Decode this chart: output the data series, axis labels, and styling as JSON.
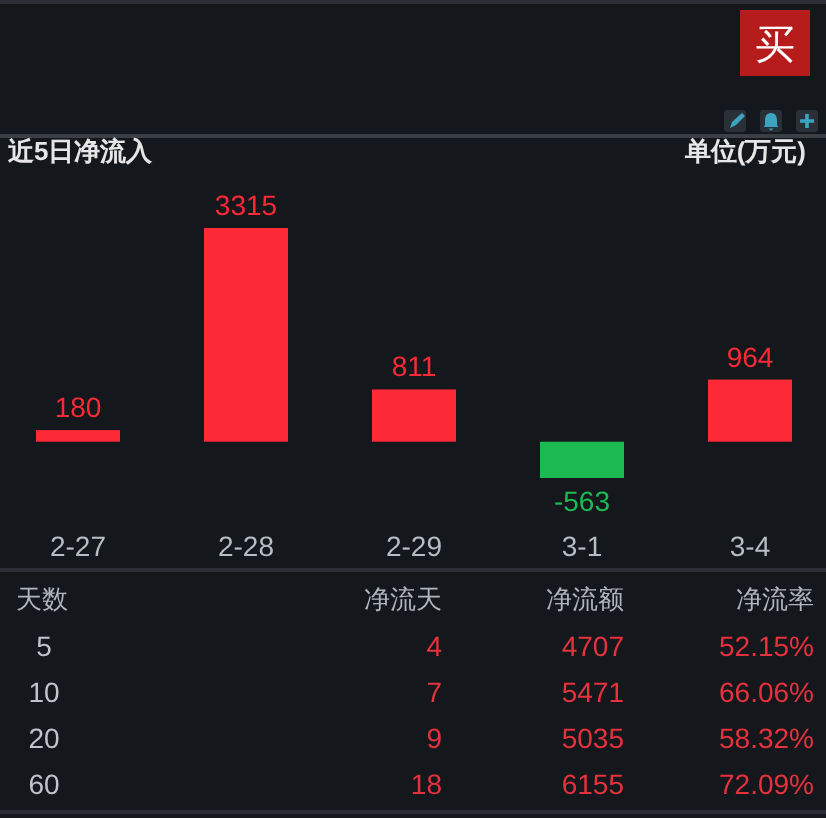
{
  "chart_data": [
    {
      "type": "bar",
      "title": "近5日净流入",
      "annotations": [
        "单位(万元)",
        "买"
      ],
      "categories": [
        "2-27",
        "2-28",
        "2-29",
        "3-1",
        "3-4"
      ],
      "values": [
        180,
        3315,
        811,
        -563,
        964
      ],
      "colors": [
        "#fb2a36",
        "#fb2a36",
        "#fb2a36",
        "#1bbb52",
        "#fb2a36"
      ],
      "data_labels": true
    },
    {
      "type": "other",
      "ylabel": "天数",
      "categories": [
        "净流天",
        "净流额",
        "净流率"
      ],
      "y_categories": [
        "5",
        "10",
        "20",
        "60"
      ],
      "cell_labels": [
        [
          "4",
          "4707",
          "52.15%"
        ],
        [
          "7",
          "5471",
          "66.06%"
        ],
        [
          "9",
          "5035",
          "58.32%"
        ],
        [
          "18",
          "6155",
          "72.09%"
        ]
      ],
      "color": "#e5323c"
    }
  ]
}
